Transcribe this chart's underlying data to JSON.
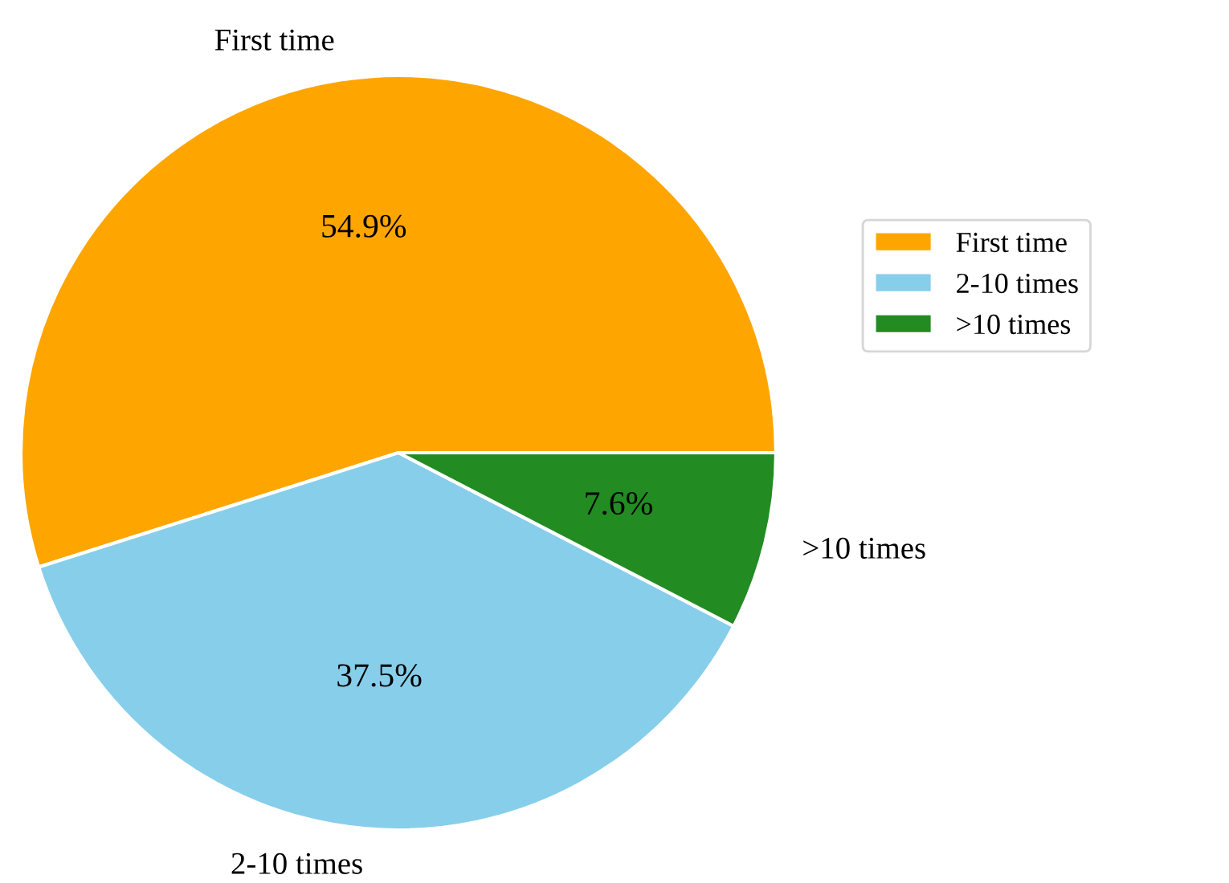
{
  "chart_data": {
    "type": "pie",
    "categories": [
      "First time",
      "2-10 times",
      ">10 times"
    ],
    "values": [
      54.9,
      37.5,
      7.6
    ],
    "value_labels": [
      "54.9%",
      "37.5%",
      "7.6%"
    ],
    "colors": [
      "#ffa500",
      "#87ceeb",
      "#228b22"
    ],
    "legend": "right"
  }
}
